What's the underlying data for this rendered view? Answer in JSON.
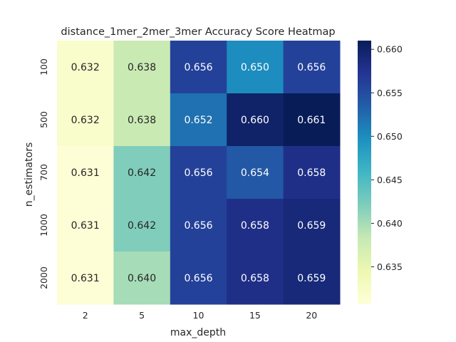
{
  "chart_data": {
    "type": "heatmap",
    "title": "distance_1mer_2mer_3mer Accuracy Score Heatmap",
    "xlabel": "max_depth",
    "ylabel": "n_estimators",
    "x_categories": [
      "2",
      "5",
      "10",
      "15",
      "20"
    ],
    "y_categories": [
      "100",
      "500",
      "700",
      "1000",
      "2000"
    ],
    "values": [
      [
        0.632,
        0.638,
        0.656,
        0.65,
        0.656
      ],
      [
        0.632,
        0.638,
        0.652,
        0.66,
        0.661
      ],
      [
        0.631,
        0.642,
        0.656,
        0.654,
        0.658
      ],
      [
        0.631,
        0.642,
        0.656,
        0.658,
        0.659
      ],
      [
        0.631,
        0.64,
        0.656,
        0.658,
        0.659
      ]
    ],
    "value_range": [
      0.6307,
      0.661
    ],
    "colorbar_ticks": [
      "0.635",
      "0.640",
      "0.645",
      "0.650",
      "0.655",
      "0.660"
    ],
    "colormap": "YlGnBu",
    "colormap_stops": [
      "#ffffd9",
      "#edf8b1",
      "#c7e9b4",
      "#7fcdbb",
      "#41b6c4",
      "#1d91c0",
      "#225ea8",
      "#253494",
      "#081d58"
    ],
    "grid": false,
    "annotations": true
  }
}
